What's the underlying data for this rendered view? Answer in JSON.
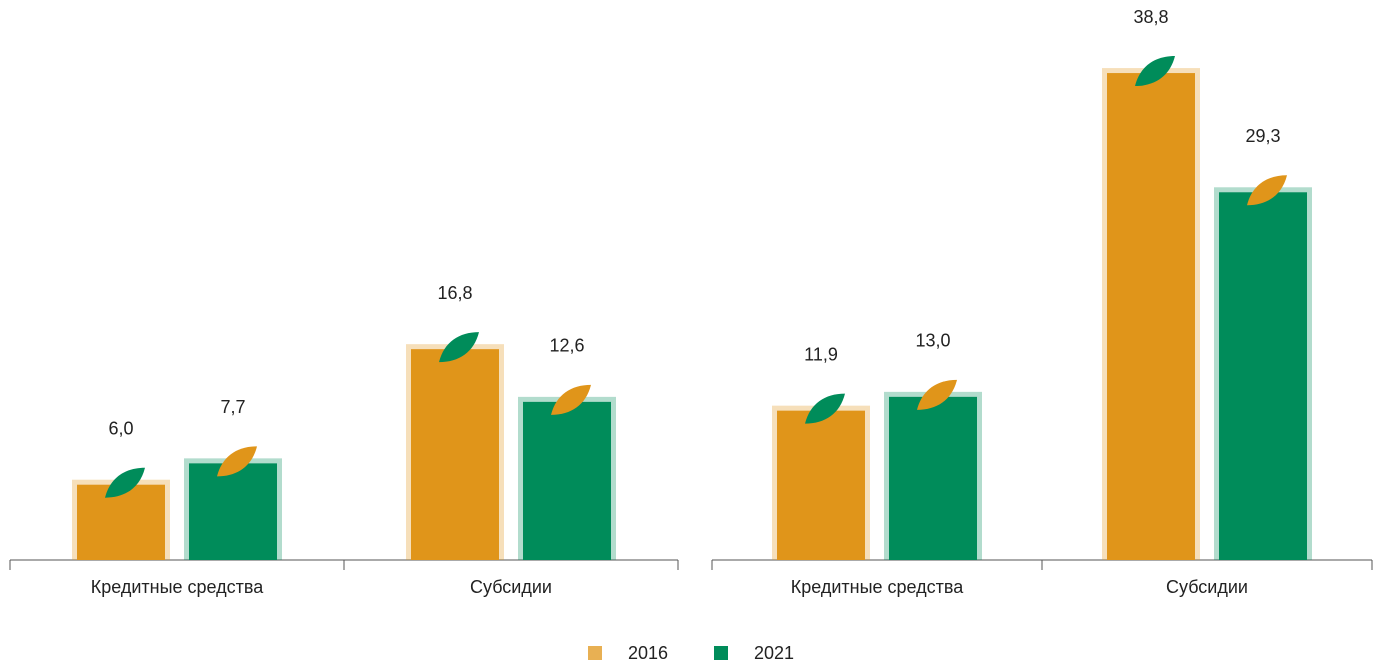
{
  "chart_data": [
    {
      "type": "bar",
      "categories": [
        "Кредитные средства",
        "Субсидии"
      ],
      "series": [
        {
          "values": [
            6.0,
            16.8
          ],
          "value_labels": [
            "6,0",
            "16,8"
          ]
        },
        {
          "values": [
            7.7,
            12.6
          ],
          "value_labels": [
            "7,7",
            "12,6"
          ]
        }
      ],
      "ylim": [
        0,
        40
      ]
    },
    {
      "type": "bar",
      "categories": [
        "Кредитные средства",
        "Субсидии"
      ],
      "series": [
        {
          "values": [
            11.9,
            38.8
          ],
          "value_labels": [
            "11,9",
            "38,8"
          ]
        },
        {
          "values": [
            13.0,
            29.3
          ],
          "value_labels": [
            "13,0",
            "29,3"
          ]
        }
      ],
      "ylim": [
        0,
        40
      ]
    }
  ],
  "legend": [
    {
      "name": "2016",
      "color": "#e0951a"
    },
    {
      "name": "2021",
      "color": "#008c5a"
    }
  ]
}
